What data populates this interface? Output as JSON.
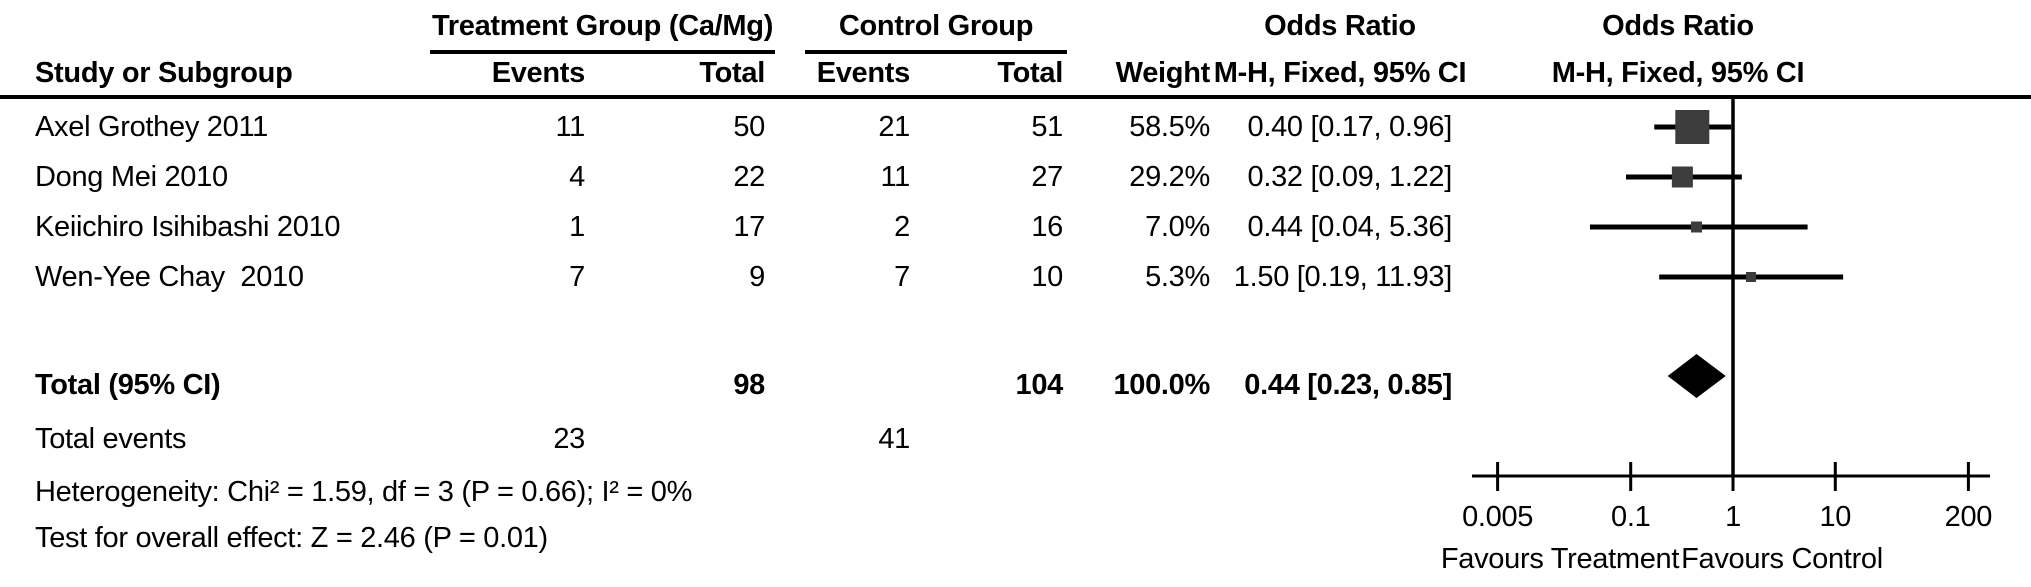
{
  "colors": {
    "text": "#000000",
    "line": "#000000",
    "square": "#3d3d3d",
    "diamond": "#000000",
    "background": "#ffffff"
  },
  "header": {
    "group1": "Treatment Group (Ca/Mg)",
    "group2": "Control Group",
    "or_title": "Odds Ratio",
    "or_subtitle": "M-H, Fixed, 95% CI",
    "plot_title": "Odds Ratio",
    "plot_subtitle": "M-H, Fixed, 95% CI",
    "study_col": "Study or Subgroup",
    "events_col1": "Events",
    "total_col1": "Total",
    "events_col2": "Events",
    "total_col2": "Total",
    "weight_col": "Weight"
  },
  "footer": {
    "total_label": "Total (95% CI)",
    "total_events_label": "Total events",
    "heterogeneity": "Heterogeneity: Chi² = 1.59, df = 3 (P = 0.66); I² = 0%",
    "overall_effect": "Test for overall effect: Z = 2.46 (P = 0.01)"
  },
  "chart_data": {
    "type": "forest",
    "effect_measure": "Odds Ratio (M-H, Fixed, 95% CI)",
    "x_scale": "log",
    "x_ticks": [
      0.005,
      0.1,
      1,
      10,
      200
    ],
    "x_tick_labels": [
      "0.005",
      "0.1",
      "1",
      "10",
      "200"
    ],
    "null_line": 1,
    "favours_left": "Favours Treatment",
    "favours_right": "Favours Control",
    "studies": [
      {
        "name": "Axel Grothey 2011",
        "treatment_events": 11,
        "treatment_total": 50,
        "control_events": 21,
        "control_total": 51,
        "weight": "58.5%",
        "weight_pct": 58.5,
        "or": 0.4,
        "ci_low": 0.17,
        "ci_high": 0.96,
        "or_label": "0.40 [0.17, 0.96]"
      },
      {
        "name": "Dong Mei 2010",
        "treatment_events": 4,
        "treatment_total": 22,
        "control_events": 11,
        "control_total": 27,
        "weight": "29.2%",
        "weight_pct": 29.2,
        "or": 0.32,
        "ci_low": 0.09,
        "ci_high": 1.22,
        "or_label": "0.32 [0.09, 1.22]"
      },
      {
        "name": "Keiichiro Isihibashi 2010",
        "treatment_events": 1,
        "treatment_total": 17,
        "control_events": 2,
        "control_total": 16,
        "weight": "7.0%",
        "weight_pct": 7.0,
        "or": 0.44,
        "ci_low": 0.04,
        "ci_high": 5.36,
        "or_label": "0.44 [0.04, 5.36]"
      },
      {
        "name": "Wen-Yee Chay  2010",
        "treatment_events": 7,
        "treatment_total": 9,
        "control_events": 7,
        "control_total": 10,
        "weight": "5.3%",
        "weight_pct": 5.3,
        "or": 1.5,
        "ci_low": 0.19,
        "ci_high": 11.93,
        "or_label": "1.50 [0.19, 11.93]"
      }
    ],
    "total": {
      "treatment_total": 98,
      "control_total": 104,
      "weight": "100.0%",
      "or": 0.44,
      "ci_low": 0.23,
      "ci_high": 0.85,
      "or_label": "0.44 [0.23, 0.85]"
    },
    "total_events": {
      "treatment": 23,
      "control": 41
    }
  }
}
